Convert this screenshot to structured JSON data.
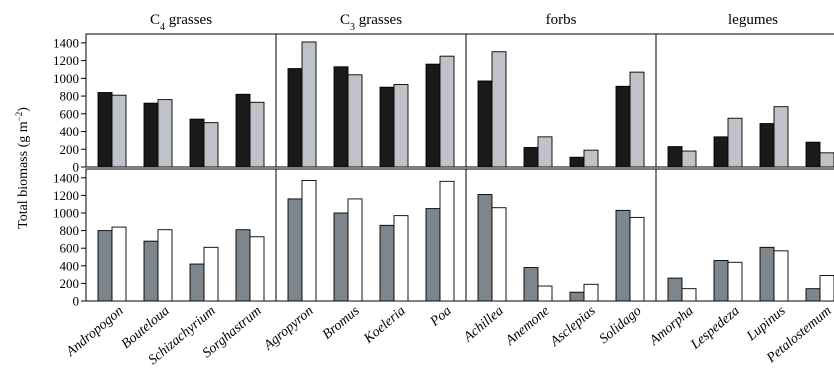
{
  "chart_data": {
    "type": "bar",
    "ylabel_main": "Total biomass (g m",
    "ylabel_sup": "−2",
    "ylabel_tail": ")",
    "ylim": [
      0,
      1500
    ],
    "yticks": [
      0,
      200,
      400,
      600,
      800,
      1000,
      1200,
      1400
    ],
    "groups": [
      {
        "title_main": "C",
        "title_sub": "4",
        "title_tail": " grasses",
        "species": [
          "Andropogon",
          "Bouteloua",
          "Schizachyrium",
          "Sorghastrum"
        ]
      },
      {
        "title_main": "C",
        "title_sub": "3",
        "title_tail": " grasses",
        "species": [
          "Agropyron",
          "Bromus",
          "Koeleria",
          "Poa"
        ]
      },
      {
        "title_main": "forbs",
        "title_sub": "",
        "title_tail": "",
        "species": [
          "Achillea",
          "Anemone",
          "Asclepias",
          "Solidago"
        ]
      },
      {
        "title_main": "legumes",
        "title_sub": "",
        "title_tail": "",
        "species": [
          "Amorpha",
          "Lespedeza",
          "Lupinus",
          "Petalostemum"
        ]
      }
    ],
    "rows": [
      {
        "colors": [
          "#1a1a1a",
          "#bfc2c8"
        ],
        "values": [
          [
            [
              840,
              810
            ],
            [
              720,
              760
            ],
            [
              540,
              500
            ],
            [
              820,
              730
            ]
          ],
          [
            [
              1110,
              1410
            ],
            [
              1130,
              1040
            ],
            [
              900,
              930
            ],
            [
              1160,
              1250
            ]
          ],
          [
            [
              970,
              1300
            ],
            [
              220,
              340
            ],
            [
              110,
              190
            ],
            [
              910,
              1070
            ]
          ],
          [
            [
              230,
              180
            ],
            [
              340,
              550
            ],
            [
              490,
              680
            ],
            [
              280,
              160
            ]
          ]
        ]
      },
      {
        "colors": [
          "#7d858d",
          "#ffffff"
        ],
        "values": [
          [
            [
              800,
              840
            ],
            [
              680,
              810
            ],
            [
              420,
              610
            ],
            [
              810,
              730
            ]
          ],
          [
            [
              1160,
              1370
            ],
            [
              1000,
              1160
            ],
            [
              860,
              970
            ],
            [
              1050,
              1360
            ]
          ],
          [
            [
              1210,
              1060
            ],
            [
              380,
              170
            ],
            [
              100,
              190
            ],
            [
              1030,
              950
            ]
          ],
          [
            [
              260,
              140
            ],
            [
              460,
              440
            ],
            [
              610,
              570
            ],
            [
              140,
              290
            ]
          ]
        ]
      }
    ]
  }
}
